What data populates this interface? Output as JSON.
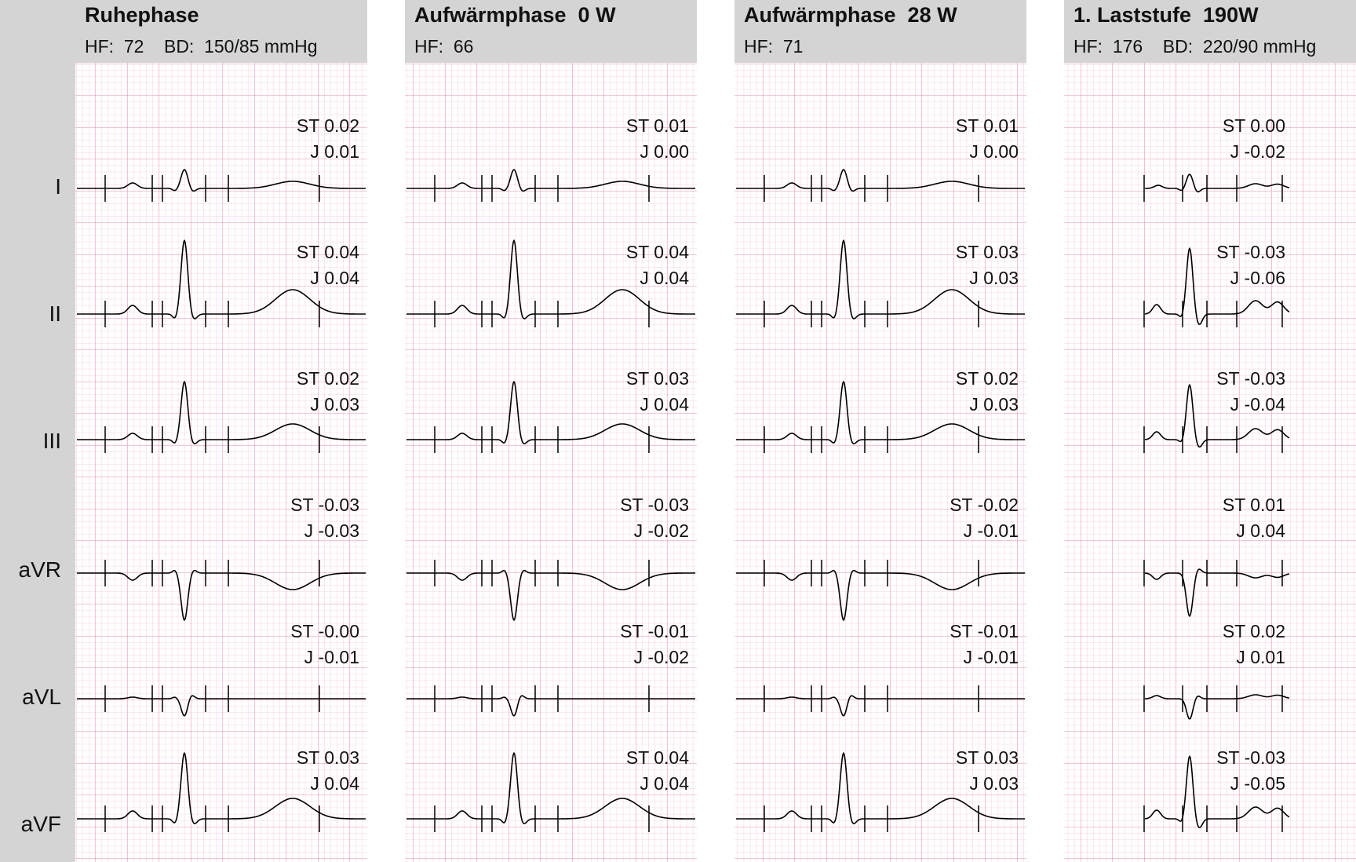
{
  "chart_data": {
    "type": "ecg",
    "leads": [
      "I",
      "II",
      "III",
      "aVR",
      "aVL",
      "aVF"
    ],
    "panels": [
      {
        "title": "Ruhephase",
        "vitals": "HF:  72    BD:  150/85 mmHg",
        "measurements": [
          {
            "st": "ST  0.02",
            "j": "J  0.01"
          },
          {
            "st": "ST  0.04",
            "j": "J  0.04"
          },
          {
            "st": "ST  0.02",
            "j": "J  0.03"
          },
          {
            "st": "ST -0.03",
            "j": "J -0.03"
          },
          {
            "st": "ST -0.00",
            "j": "J -0.01"
          },
          {
            "st": "ST  0.03",
            "j": "J  0.04"
          }
        ]
      },
      {
        "title": "Aufwärmphase  0 W",
        "vitals": "HF:  66",
        "measurements": [
          {
            "st": "ST  0.01",
            "j": "J  0.00"
          },
          {
            "st": "ST  0.04",
            "j": "J  0.04"
          },
          {
            "st": "ST  0.03",
            "j": "J  0.04"
          },
          {
            "st": "ST -0.03",
            "j": "J -0.02"
          },
          {
            "st": "ST -0.01",
            "j": "J -0.02"
          },
          {
            "st": "ST  0.04",
            "j": "J  0.04"
          }
        ]
      },
      {
        "title": "Aufwärmphase  28 W",
        "vitals": "HF:  71",
        "measurements": [
          {
            "st": "ST  0.01",
            "j": "J  0.00"
          },
          {
            "st": "ST  0.03",
            "j": "J  0.03"
          },
          {
            "st": "ST  0.02",
            "j": "J  0.03"
          },
          {
            "st": "ST -0.02",
            "j": "J -0.01"
          },
          {
            "st": "ST -0.01",
            "j": "J -0.01"
          },
          {
            "st": "ST  0.03",
            "j": "J  0.03"
          }
        ]
      },
      {
        "title": "1. Laststufe  190W",
        "vitals": "HF:  176    BD:  220/90 mmHg",
        "measurements": [
          {
            "st": "ST  0.00",
            "j": "J -0.02"
          },
          {
            "st": "ST -0.03",
            "j": "J -0.06"
          },
          {
            "st": "ST -0.03",
            "j": "J -0.04"
          },
          {
            "st": "ST  0.01",
            "j": "J  0.04"
          },
          {
            "st": "ST  0.02",
            "j": "J  0.01"
          },
          {
            "st": "ST -0.03",
            "j": "J -0.05"
          }
        ]
      }
    ],
    "colors": {
      "grid_minor": "#f7c6d2",
      "grid_major": "#ec8fa6",
      "trace": "#000000",
      "header": "#d4d4d4"
    }
  }
}
